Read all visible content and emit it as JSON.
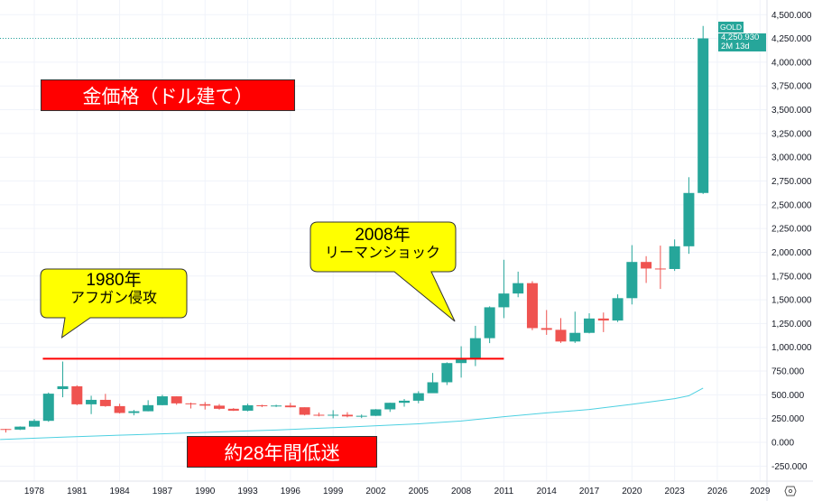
{
  "chart_data": {
    "type": "candlestick",
    "symbol": "GOLD",
    "interval": "12M",
    "last_price": "4,250.930",
    "countdown": "2M 13d",
    "y_ticks": [
      "4,500.000",
      "4,250.000",
      "4,000.000",
      "3,750.000",
      "3,500.000",
      "3,250.000",
      "3,000.000",
      "2,750.000",
      "2,500.000",
      "2,250.000",
      "2,000.000",
      "1,750.000",
      "1,500.000",
      "1,250.000",
      "1,000.000",
      "750.000",
      "500.000",
      "250.000",
      "0.000",
      "-250.000"
    ],
    "y_tick_values": [
      4500,
      4250,
      4000,
      3750,
      3500,
      3250,
      3000,
      2750,
      2500,
      2250,
      2000,
      1750,
      1500,
      1250,
      1000,
      750,
      500,
      250,
      0,
      -250
    ],
    "ylim": [
      -330,
      4720
    ],
    "x_ticks": [
      "1978",
      "1981",
      "1984",
      "1987",
      "1990",
      "1993",
      "1996",
      "1999",
      "2002",
      "2005",
      "2008",
      "2011",
      "2014",
      "2017",
      "2020",
      "2023",
      "2026",
      "2029"
    ],
    "x_tick_years": [
      1978,
      1981,
      1984,
      1987,
      1990,
      1993,
      1996,
      1999,
      2002,
      2005,
      2008,
      2011,
      2014,
      2017,
      2020,
      2023,
      2026,
      2029
    ],
    "xlim": [
      1975.6,
      2029.9
    ],
    "candles": [
      {
        "year": 1976,
        "o": 140,
        "h": 142,
        "l": 103,
        "c": 134
      },
      {
        "year": 1977,
        "o": 134,
        "h": 168,
        "l": 129,
        "c": 165
      },
      {
        "year": 1978,
        "o": 165,
        "h": 245,
        "l": 165,
        "c": 226
      },
      {
        "year": 1979,
        "o": 226,
        "h": 524,
        "l": 216,
        "c": 512
      },
      {
        "year": 1980,
        "o": 560,
        "h": 850,
        "l": 474,
        "c": 590
      },
      {
        "year": 1981,
        "o": 590,
        "h": 600,
        "l": 391,
        "c": 400
      },
      {
        "year": 1982,
        "o": 400,
        "h": 490,
        "l": 297,
        "c": 447
      },
      {
        "year": 1983,
        "o": 447,
        "h": 510,
        "l": 374,
        "c": 381
      },
      {
        "year": 1984,
        "o": 381,
        "h": 406,
        "l": 303,
        "c": 309
      },
      {
        "year": 1985,
        "o": 309,
        "h": 341,
        "l": 284,
        "c": 327
      },
      {
        "year": 1986,
        "o": 327,
        "h": 443,
        "l": 326,
        "c": 391
      },
      {
        "year": 1987,
        "o": 391,
        "h": 500,
        "l": 390,
        "c": 484
      },
      {
        "year": 1988,
        "o": 484,
        "h": 485,
        "l": 395,
        "c": 410
      },
      {
        "year": 1989,
        "o": 410,
        "h": 418,
        "l": 356,
        "c": 401
      },
      {
        "year": 1990,
        "o": 401,
        "h": 424,
        "l": 345,
        "c": 386
      },
      {
        "year": 1991,
        "o": 386,
        "h": 403,
        "l": 344,
        "c": 353
      },
      {
        "year": 1992,
        "o": 353,
        "h": 360,
        "l": 330,
        "c": 333
      },
      {
        "year": 1993,
        "o": 333,
        "h": 406,
        "l": 326,
        "c": 390
      },
      {
        "year": 1994,
        "o": 390,
        "h": 396,
        "l": 370,
        "c": 383
      },
      {
        "year": 1995,
        "o": 383,
        "h": 396,
        "l": 372,
        "c": 387
      },
      {
        "year": 1996,
        "o": 387,
        "h": 415,
        "l": 367,
        "c": 369
      },
      {
        "year": 1997,
        "o": 369,
        "h": 368,
        "l": 283,
        "c": 290
      },
      {
        "year": 1998,
        "o": 290,
        "h": 313,
        "l": 273,
        "c": 288
      },
      {
        "year": 1999,
        "o": 288,
        "h": 338,
        "l": 252,
        "c": 290
      },
      {
        "year": 2000,
        "o": 290,
        "h": 317,
        "l": 263,
        "c": 273
      },
      {
        "year": 2001,
        "o": 273,
        "h": 293,
        "l": 255,
        "c": 279
      },
      {
        "year": 2002,
        "o": 279,
        "h": 350,
        "l": 277,
        "c": 347
      },
      {
        "year": 2003,
        "o": 347,
        "h": 417,
        "l": 320,
        "c": 416
      },
      {
        "year": 2004,
        "o": 416,
        "h": 456,
        "l": 375,
        "c": 438
      },
      {
        "year": 2005,
        "o": 438,
        "h": 538,
        "l": 411,
        "c": 517
      },
      {
        "year": 2006,
        "o": 517,
        "h": 730,
        "l": 524,
        "c": 632
      },
      {
        "year": 2007,
        "o": 632,
        "h": 842,
        "l": 603,
        "c": 834
      },
      {
        "year": 2008,
        "o": 834,
        "h": 1011,
        "l": 681,
        "c": 884
      },
      {
        "year": 2009,
        "o": 884,
        "h": 1226,
        "l": 802,
        "c": 1096
      },
      {
        "year": 2010,
        "o": 1096,
        "h": 1431,
        "l": 1044,
        "c": 1421
      },
      {
        "year": 2011,
        "o": 1421,
        "h": 1921,
        "l": 1307,
        "c": 1566
      },
      {
        "year": 2012,
        "o": 1566,
        "h": 1796,
        "l": 1527,
        "c": 1675
      },
      {
        "year": 2013,
        "o": 1675,
        "h": 1696,
        "l": 1180,
        "c": 1202
      },
      {
        "year": 2014,
        "o": 1202,
        "h": 1392,
        "l": 1131,
        "c": 1184
      },
      {
        "year": 2015,
        "o": 1184,
        "h": 1307,
        "l": 1046,
        "c": 1061
      },
      {
        "year": 2016,
        "o": 1061,
        "h": 1375,
        "l": 1046,
        "c": 1152
      },
      {
        "year": 2017,
        "o": 1152,
        "h": 1358,
        "l": 1146,
        "c": 1303
      },
      {
        "year": 2018,
        "o": 1303,
        "h": 1366,
        "l": 1160,
        "c": 1282
      },
      {
        "year": 2019,
        "o": 1282,
        "h": 1557,
        "l": 1266,
        "c": 1517
      },
      {
        "year": 2020,
        "o": 1517,
        "h": 2075,
        "l": 1451,
        "c": 1898
      },
      {
        "year": 2021,
        "o": 1898,
        "h": 1959,
        "l": 1677,
        "c": 1829
      },
      {
        "year": 2022,
        "o": 1829,
        "h": 2070,
        "l": 1614,
        "c": 1824
      },
      {
        "year": 2023,
        "o": 1824,
        "h": 2135,
        "l": 1804,
        "c": 2063
      },
      {
        "year": 2024,
        "o": 2063,
        "h": 2790,
        "l": 1984,
        "c": 2624
      },
      {
        "year": 2025,
        "o": 2624,
        "h": 4381,
        "l": 2614,
        "c": 4251
      }
    ],
    "indicator_line": {
      "color": "#4dd0e1",
      "points": [
        [
          1975.6,
          30
        ],
        [
          1980,
          55
        ],
        [
          1985,
          80
        ],
        [
          1990,
          105
        ],
        [
          1995,
          130
        ],
        [
          2000,
          160
        ],
        [
          2005,
          195
        ],
        [
          2008,
          225
        ],
        [
          2011,
          270
        ],
        [
          2014,
          310
        ],
        [
          2017,
          345
        ],
        [
          2020,
          400
        ],
        [
          2023,
          460
        ],
        [
          2024,
          490
        ],
        [
          2025,
          570
        ]
      ]
    },
    "hline": {
      "value": 880,
      "from_year": 1978.6,
      "to_year": 2011.0,
      "color": "#ff0000"
    },
    "colors": {
      "up": "#26a69a",
      "down": "#ef5350",
      "grid": "#f0f3fa"
    },
    "annotations": {
      "title": "金価格（ドル建て）",
      "stagnation": "約28年間低迷",
      "callout_1980": {
        "line1": "1980年",
        "line2": "アフガン侵攻",
        "target_year": 1980,
        "target_value": 960
      },
      "callout_2008": {
        "line1": "2008年",
        "line2": "リーマンショック",
        "target_year": 2008,
        "target_value": 1140
      }
    }
  },
  "ui": {
    "settings_icon": "gear-icon"
  }
}
